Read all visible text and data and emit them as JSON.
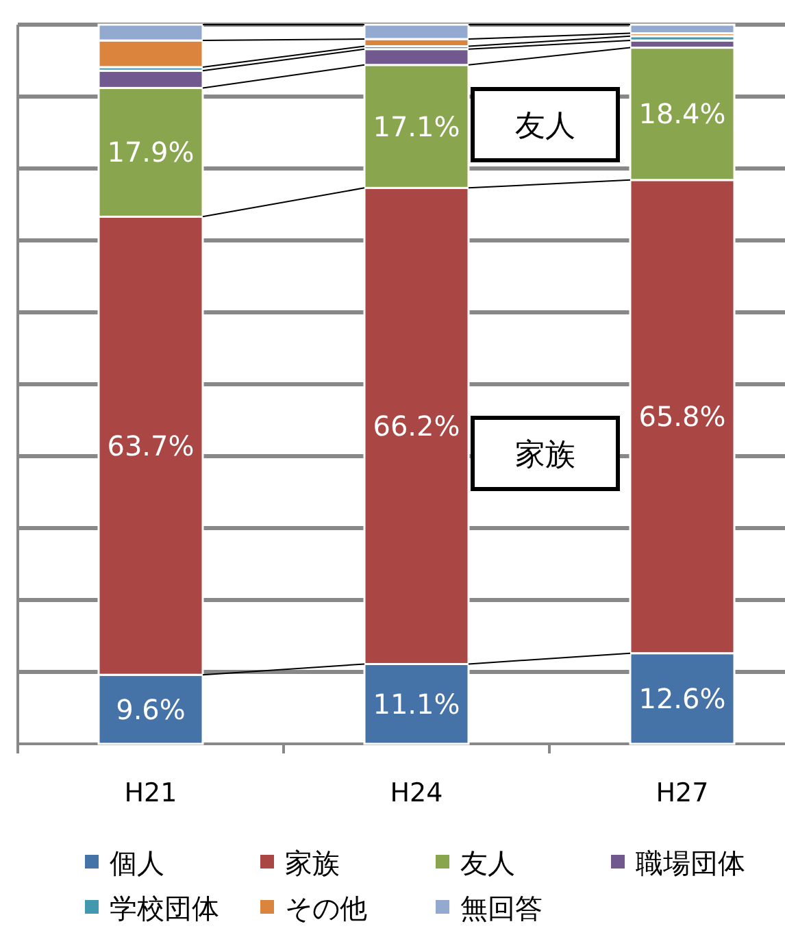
{
  "chart_data": {
    "type": "bar",
    "stacked": true,
    "categories": [
      "H21",
      "H24",
      "H27"
    ],
    "series": [
      {
        "name": "個人",
        "color": "#4572a7",
        "values": [
          9.6,
          11.1,
          12.6
        ],
        "value_labels": [
          "9.6%",
          "11.1%",
          "12.6%"
        ]
      },
      {
        "name": "家族",
        "color": "#aa4643",
        "values": [
          63.7,
          66.2,
          65.8
        ],
        "value_labels": [
          "63.7%",
          "66.2%",
          "65.8%"
        ]
      },
      {
        "name": "友人",
        "color": "#89a54e",
        "values": [
          17.9,
          17.1,
          18.4
        ],
        "value_labels": [
          "17.9%",
          "17.1%",
          "18.4%"
        ]
      },
      {
        "name": "職場団体",
        "color": "#71588f",
        "values": [
          2.4,
          2.2,
          1.0
        ]
      },
      {
        "name": "学校団体",
        "color": "#4198af",
        "values": [
          0.5,
          0.4,
          0.6
        ]
      },
      {
        "name": "その他",
        "color": "#db843d",
        "values": [
          3.7,
          1.0,
          0.4
        ]
      },
      {
        "name": "無回答",
        "color": "#93a9cf",
        "values": [
          2.2,
          2.0,
          1.2
        ]
      }
    ],
    "ylim": [
      0,
      100
    ],
    "yticks": [
      {
        "value": 0,
        "label": null
      },
      {
        "value": 10,
        "label": null
      },
      {
        "value": 20,
        "label": null
      },
      {
        "value": 30,
        "label": null
      },
      {
        "value": 40,
        "label": null
      },
      {
        "value": 50,
        "label": null
      },
      {
        "value": 60,
        "label": null
      },
      {
        "value": 70,
        "label": null
      },
      {
        "value": 80,
        "label": null
      },
      {
        "value": 90,
        "label": null
      },
      {
        "value": 100,
        "label": null
      }
    ],
    "tick_labels": "x",
    "grid": "y",
    "legend": "bottom",
    "annotations": [
      "友人",
      "家族"
    ]
  }
}
